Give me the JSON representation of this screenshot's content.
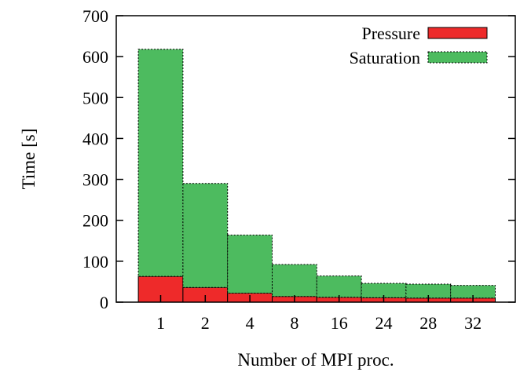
{
  "chart_data": {
    "type": "bar",
    "stacked": true,
    "categories": [
      "1",
      "2",
      "4",
      "8",
      "16",
      "24",
      "28",
      "32"
    ],
    "series": [
      {
        "name": "Pressure",
        "color": "#ee2a2a",
        "border": "solid",
        "values": [
          63,
          36,
          22,
          14,
          12,
          11,
          10,
          10
        ]
      },
      {
        "name": "Saturation",
        "color": "#4dbb5f",
        "border": "dashed",
        "values": [
          555,
          254,
          142,
          78,
          52,
          35,
          34,
          31
        ]
      }
    ],
    "xlabel": "Number of MPI proc.",
    "ylabel": "Time [s]",
    "ylim": [
      0,
      700
    ],
    "yticks": [
      "0",
      "100",
      "200",
      "300",
      "400",
      "500",
      "600",
      "700"
    ],
    "grid": false,
    "legend_position": "top-right"
  }
}
